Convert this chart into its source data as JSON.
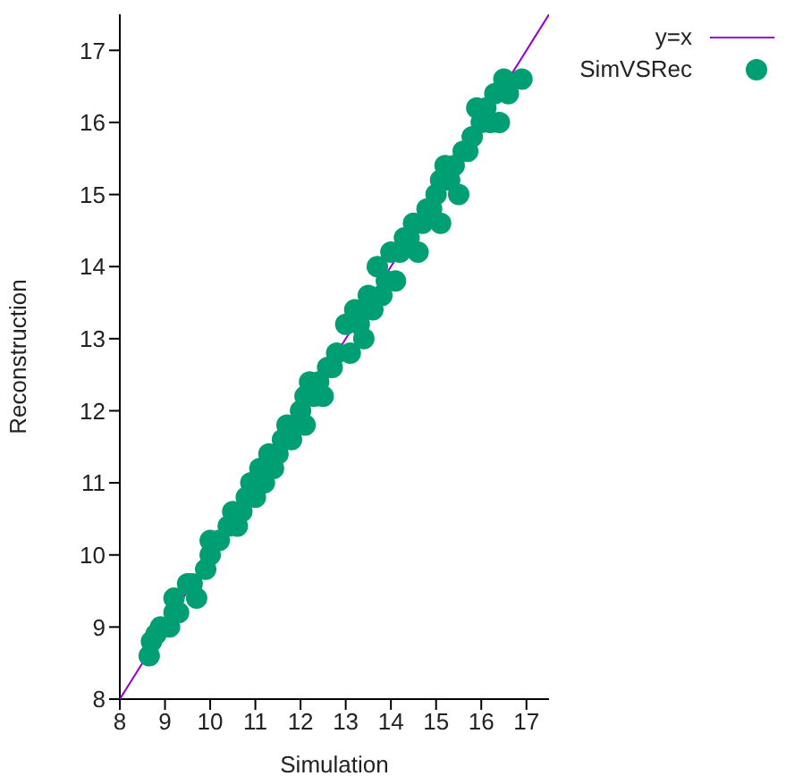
{
  "chart_data": {
    "type": "scatter",
    "xlabel": "Simulation",
    "ylabel": "Reconstruction",
    "xlim": [
      8,
      17.5
    ],
    "ylim": [
      8,
      17.5
    ],
    "xticks": [
      8,
      9,
      10,
      11,
      12,
      13,
      14,
      15,
      16,
      17
    ],
    "yticks": [
      8,
      9,
      10,
      11,
      12,
      13,
      14,
      15,
      16,
      17
    ],
    "grid": false,
    "legend": "top right",
    "series": [
      {
        "name": "y=x",
        "type": "line",
        "color": "#9400d3",
        "x": [
          8,
          17.5
        ],
        "values": [
          8,
          17.5
        ]
      },
      {
        "name": "SimVSRec",
        "marker": "circle",
        "color": "#009e73",
        "x": [
          8.65,
          8.7,
          8.8,
          8.9,
          9.1,
          9.2,
          9.2,
          9.3,
          9.5,
          9.6,
          9.7,
          9.9,
          10.0,
          10.0,
          10.2,
          10.4,
          10.5,
          10.6,
          10.7,
          10.8,
          10.9,
          11.0,
          11.1,
          11.2,
          11.3,
          11.4,
          11.5,
          11.6,
          11.7,
          11.8,
          12.0,
          12.1,
          12.1,
          12.2,
          12.3,
          12.4,
          12.5,
          12.6,
          12.7,
          12.8,
          13.0,
          13.1,
          13.2,
          13.3,
          13.4,
          13.5,
          13.6,
          13.7,
          13.8,
          13.9,
          14.0,
          14.1,
          14.2,
          14.3,
          14.4,
          14.5,
          14.6,
          14.7,
          14.8,
          14.9,
          15.0,
          15.1,
          15.1,
          15.2,
          15.3,
          15.4,
          15.5,
          15.6,
          15.7,
          15.8,
          15.9,
          16.0,
          16.1,
          16.2,
          16.3,
          16.4,
          16.5,
          16.6,
          16.9
        ],
        "values": [
          8.6,
          8.8,
          8.9,
          9.0,
          9.0,
          9.2,
          9.4,
          9.2,
          9.6,
          9.6,
          9.4,
          9.8,
          10.0,
          10.2,
          10.2,
          10.4,
          10.6,
          10.4,
          10.6,
          10.8,
          11.0,
          10.8,
          11.2,
          11.0,
          11.4,
          11.2,
          11.4,
          11.6,
          11.8,
          11.6,
          12.0,
          11.8,
          12.2,
          12.4,
          12.2,
          12.4,
          12.2,
          12.6,
          12.6,
          12.8,
          13.2,
          12.8,
          13.4,
          13.2,
          13.0,
          13.6,
          13.4,
          14.0,
          13.6,
          13.8,
          14.2,
          13.8,
          14.2,
          14.4,
          14.4,
          14.6,
          14.2,
          14.6,
          14.8,
          14.8,
          15.0,
          14.6,
          15.2,
          15.4,
          15.2,
          15.4,
          15.0,
          15.6,
          15.6,
          15.8,
          16.2,
          16.0,
          16.2,
          16.0,
          16.4,
          16.0,
          16.6,
          16.4,
          16.6
        ]
      }
    ]
  }
}
